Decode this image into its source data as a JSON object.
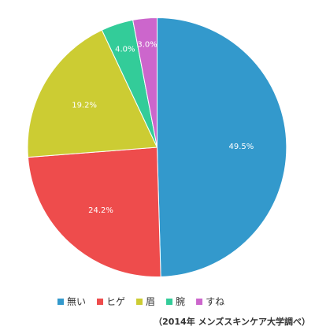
{
  "chart_data": {
    "type": "pie",
    "title": "",
    "slices": [
      {
        "label": "無い",
        "value": 49.5,
        "display": "49.5%",
        "color": "#3399cc"
      },
      {
        "label": "ヒゲ",
        "value": 24.2,
        "display": "24.2%",
        "color": "#ee4c4c"
      },
      {
        "label": "眉",
        "value": 19.2,
        "display": "19.2%",
        "color": "#cccc33"
      },
      {
        "label": "腕",
        "value": 4.0,
        "display": "4.0%",
        "color": "#33cc99"
      },
      {
        "label": "すね",
        "value": 3.0,
        "display": "3.0%",
        "color": "#cc66cc"
      }
    ],
    "start": "12 o'clock",
    "direction": "clockwise",
    "legend_position": "bottom-center",
    "source_note": "（2014年 メンズスキンケア大学調べ）"
  }
}
